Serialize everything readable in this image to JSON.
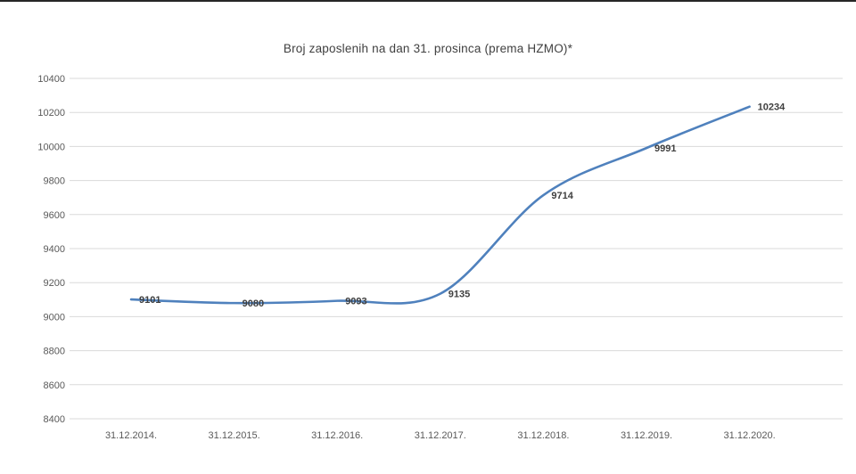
{
  "page": {
    "background": "#ffffff",
    "top_border_color": "#262626"
  },
  "chart_data": {
    "type": "line",
    "title": "Broj zaposlenih na dan 31. prosinca (prema HZMO)*",
    "categories": [
      "31.12.2014.",
      "31.12.2015.",
      "31.12.2016.",
      "31.12.2017.",
      "31.12.2018.",
      "31.12.2019.",
      "31.12.2020."
    ],
    "values": [
      9101,
      9080,
      9093,
      9135,
      9714,
      9991,
      10234
    ],
    "data_labels": [
      "9101",
      "9080",
      "9093",
      "9135",
      "9714",
      "9991",
      "10234"
    ],
    "yticks": [
      8400,
      8600,
      8800,
      9000,
      9200,
      9400,
      9600,
      9800,
      10000,
      10200,
      10400
    ],
    "ylim": [
      8400,
      10400
    ],
    "grid": true,
    "legend": "none",
    "smooth_line": true,
    "colors": {
      "line": "#4f81bd",
      "gridline": "#dadada",
      "tick_label": "#595959",
      "data_label": "#3f3f3f",
      "title": "#404040"
    }
  }
}
